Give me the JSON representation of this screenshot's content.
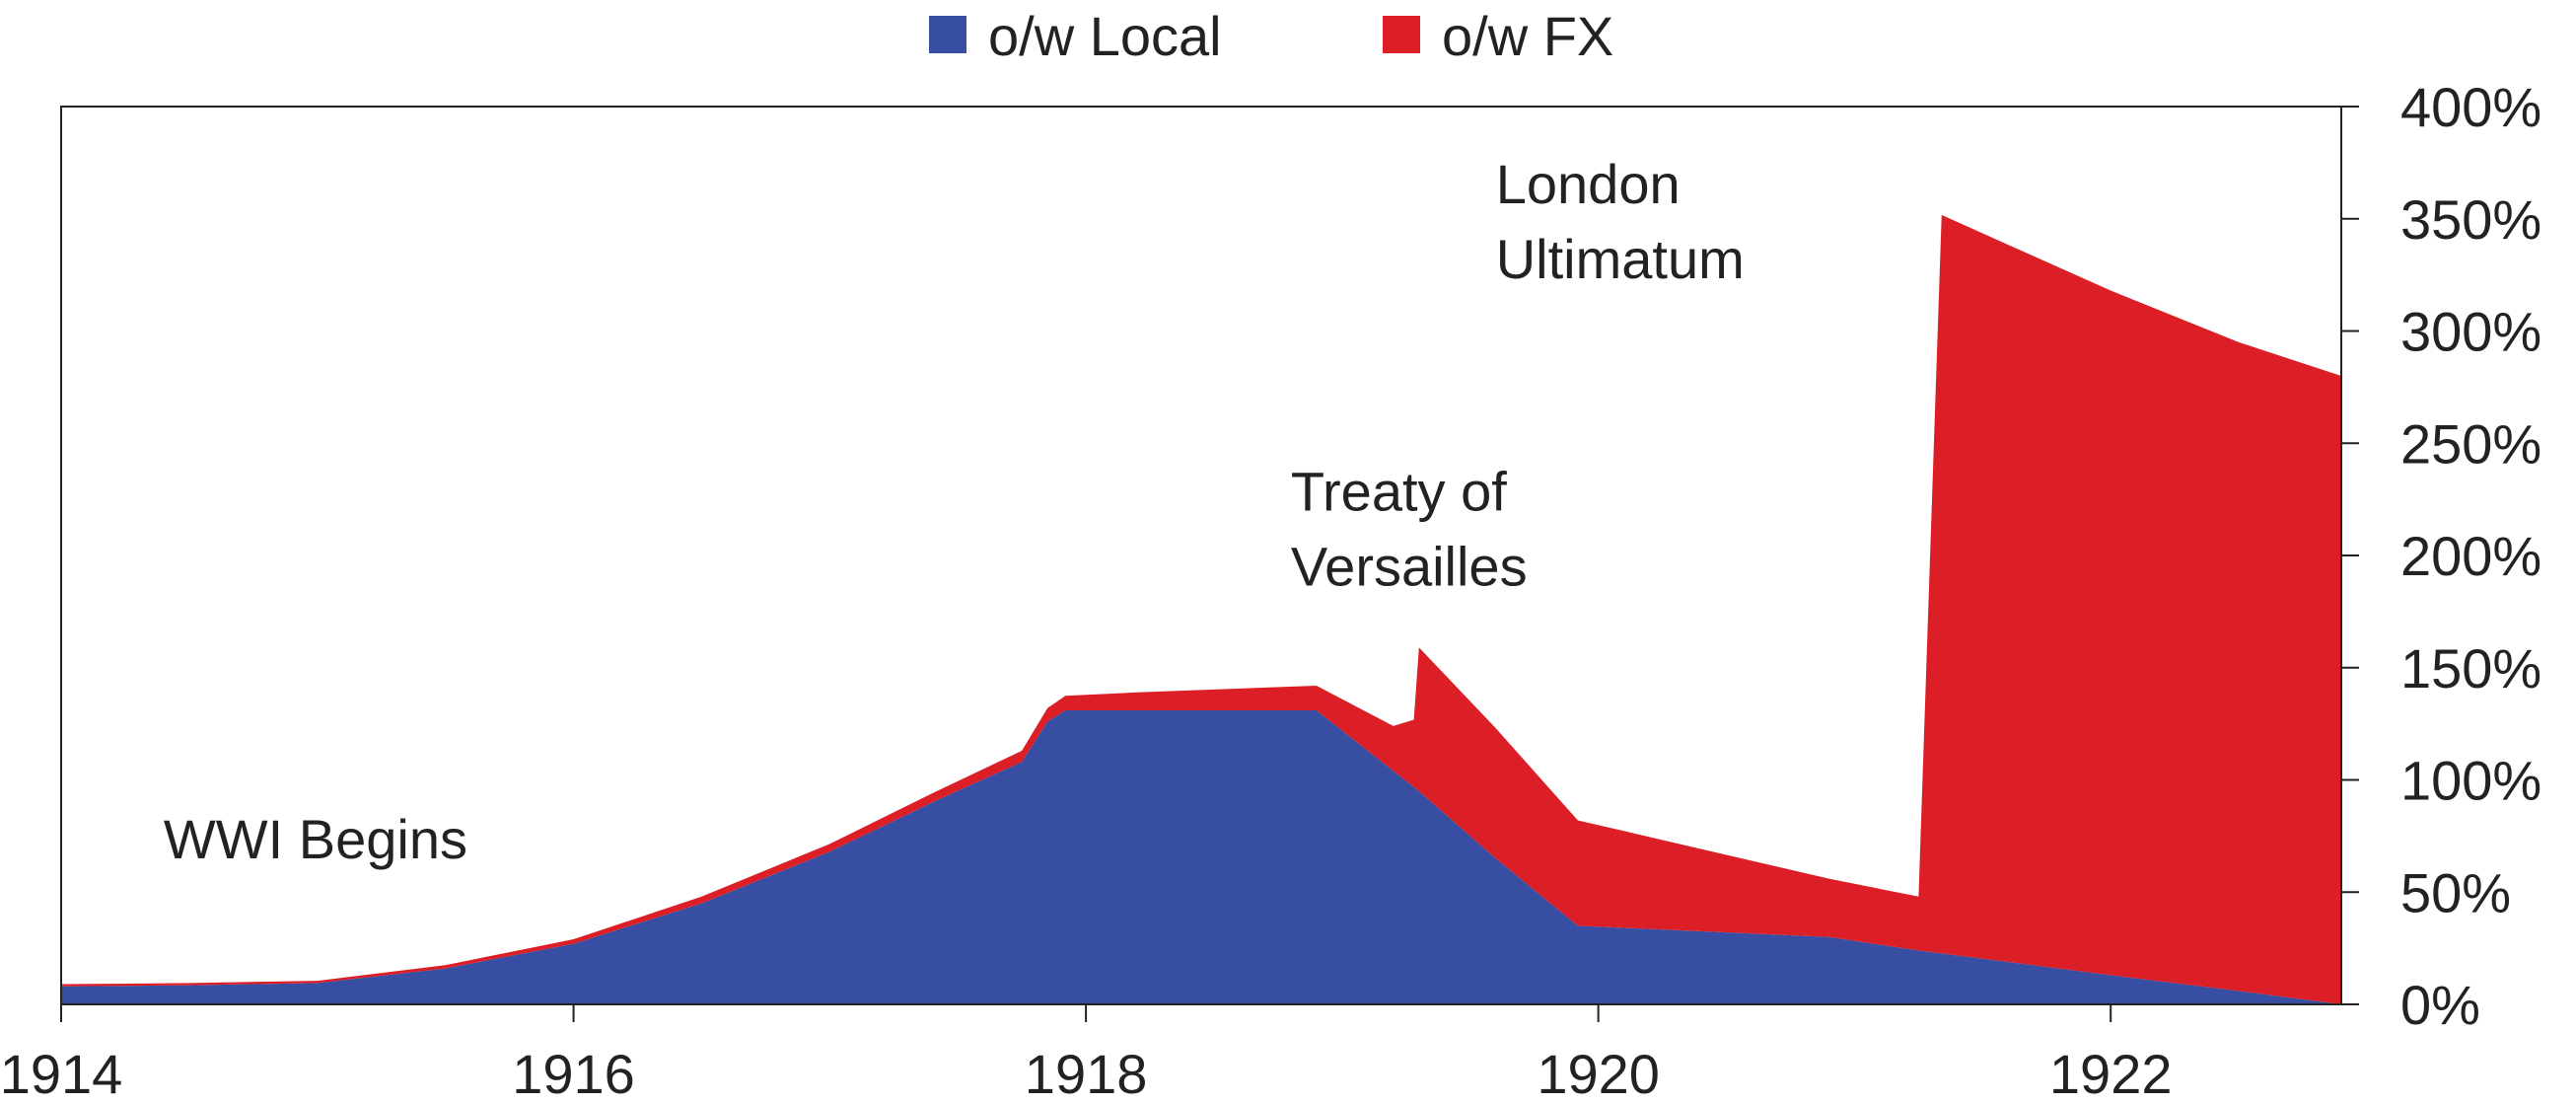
{
  "chart_data": {
    "type": "area",
    "stacked": true,
    "legend": {
      "position": "top-center",
      "entries": [
        {
          "label": "o/w Local",
          "color": "#374ea2"
        },
        {
          "label": "o/w FX",
          "color": "#dc1f26"
        }
      ]
    },
    "x_axis": {
      "min": 1914,
      "max": 1922.9,
      "ticks": [
        1914,
        1916,
        1918,
        1920,
        1922
      ],
      "tick_labels": [
        "1914",
        "1916",
        "1918",
        "1920",
        "1922"
      ]
    },
    "y_axis": {
      "position": "right",
      "min": 0,
      "max": 400,
      "ticks": [
        0,
        50,
        100,
        150,
        200,
        250,
        300,
        350,
        400
      ],
      "tick_labels": [
        "0%",
        "50%",
        "100%",
        "150%",
        "200%",
        "250%",
        "300%",
        "350%",
        "400%"
      ]
    },
    "grid": false,
    "series": [
      {
        "name": "o/w Local",
        "color": "#374ea2",
        "points": [
          [
            1914.0,
            8
          ],
          [
            1914.5,
            8.5
          ],
          [
            1915.0,
            9.5
          ],
          [
            1915.5,
            16
          ],
          [
            1916.0,
            27
          ],
          [
            1916.5,
            45
          ],
          [
            1917.0,
            68
          ],
          [
            1917.4,
            90
          ],
          [
            1917.75,
            108
          ],
          [
            1917.85,
            126
          ],
          [
            1917.92,
            131
          ],
          [
            1918.2,
            131
          ],
          [
            1918.9,
            131
          ],
          [
            1919.3,
            95
          ],
          [
            1919.6,
            65
          ],
          [
            1919.92,
            35
          ],
          [
            1920.9,
            30
          ],
          [
            1921.25,
            24
          ],
          [
            1922.0,
            13
          ],
          [
            1922.5,
            6
          ],
          [
            1922.9,
            0
          ]
        ]
      },
      {
        "name": "o/w FX",
        "color": "#dc1f26",
        "points": [
          [
            1914.0,
            1
          ],
          [
            1914.5,
            1
          ],
          [
            1915.0,
            1
          ],
          [
            1915.5,
            1.5
          ],
          [
            1916.0,
            2
          ],
          [
            1916.5,
            3
          ],
          [
            1917.0,
            3.5
          ],
          [
            1917.4,
            4
          ],
          [
            1917.75,
            5
          ],
          [
            1917.85,
            6
          ],
          [
            1917.92,
            6.5
          ],
          [
            1918.2,
            8
          ],
          [
            1918.9,
            11
          ],
          [
            1919.2,
            20
          ],
          [
            1919.28,
            30
          ],
          [
            1919.3,
            64
          ],
          [
            1919.6,
            58
          ],
          [
            1919.92,
            47
          ],
          [
            1920.9,
            26
          ],
          [
            1921.25,
            24
          ],
          [
            1921.25,
            24
          ],
          [
            1921.34,
            329
          ],
          [
            1922.0,
            305
          ],
          [
            1922.5,
            289
          ],
          [
            1922.9,
            280
          ]
        ]
      }
    ],
    "annotations": [
      {
        "text": "WWI Begins",
        "x": 1914.4,
        "y": 65
      },
      {
        "text": "Treaty of Versailles",
        "x": 1918.8,
        "y": 220
      },
      {
        "text": "London Ultimatum",
        "x": 1919.6,
        "y": 357
      }
    ]
  }
}
